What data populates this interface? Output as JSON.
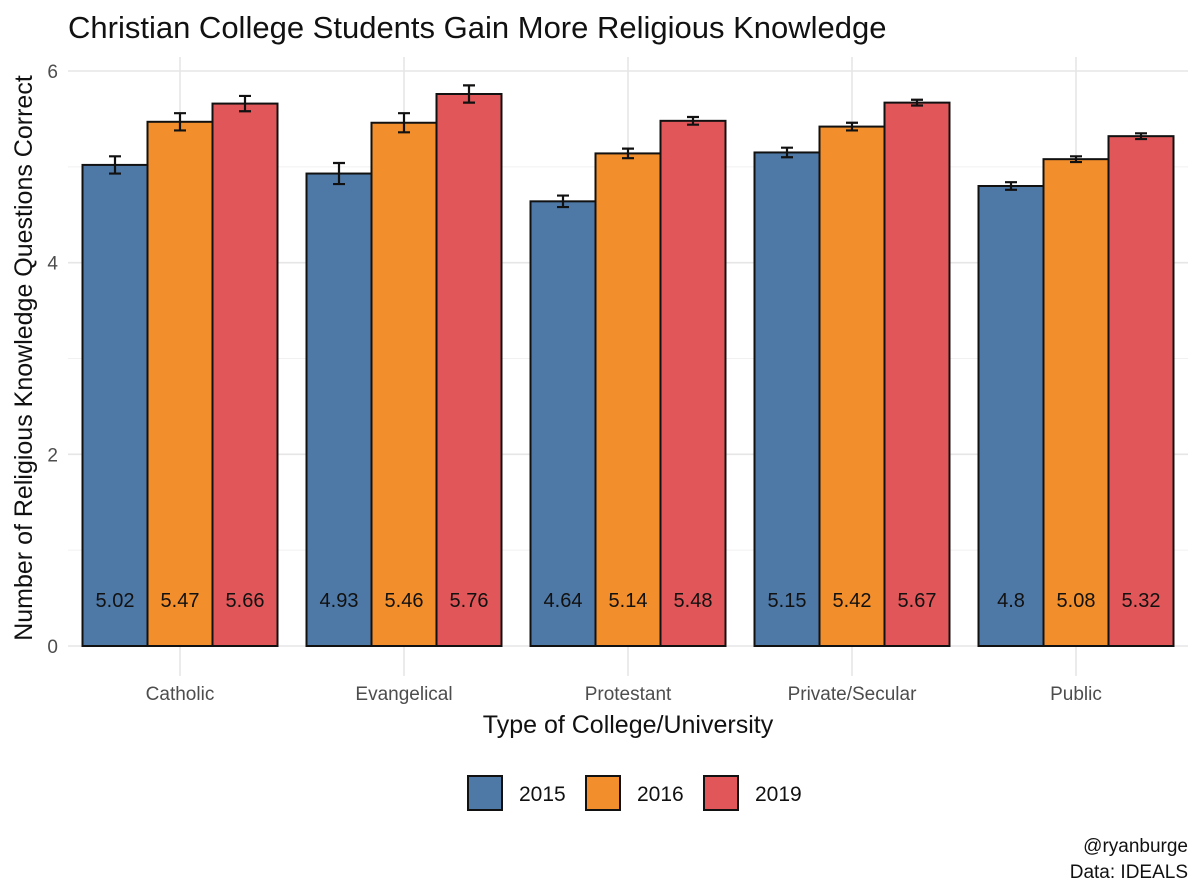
{
  "chart_data": {
    "type": "bar",
    "title": "Christian College Students Gain More Religious Knowledge",
    "xlabel": "Type of College/University",
    "ylabel": "Number of Religious Knowledge Questions Correct",
    "categories": [
      "Catholic",
      "Evangelical",
      "Protestant",
      "Private/Secular",
      "Public"
    ],
    "ylim": [
      0,
      6
    ],
    "yticks": [
      0,
      2,
      4,
      6
    ],
    "grid": true,
    "legend_position": "bottom",
    "series": [
      {
        "name": "2015",
        "color": "#4e79a7",
        "values": [
          5.02,
          4.93,
          4.64,
          5.15,
          4.8
        ],
        "labels": [
          "5.02",
          "4.93",
          "4.64",
          "5.15",
          "4.8"
        ],
        "ci_low": [
          4.93,
          4.82,
          4.58,
          5.1,
          4.76
        ],
        "ci_high": [
          5.11,
          5.04,
          4.7,
          5.2,
          4.84
        ]
      },
      {
        "name": "2016",
        "color": "#f28e2b",
        "values": [
          5.47,
          5.46,
          5.14,
          5.42,
          5.08
        ],
        "labels": [
          "5.47",
          "5.46",
          "5.14",
          "5.42",
          "5.08"
        ],
        "ci_low": [
          5.38,
          5.36,
          5.09,
          5.38,
          5.05
        ],
        "ci_high": [
          5.56,
          5.56,
          5.19,
          5.46,
          5.11
        ]
      },
      {
        "name": "2019",
        "color": "#e15759",
        "values": [
          5.66,
          5.76,
          5.48,
          5.67,
          5.32
        ],
        "labels": [
          "5.66",
          "5.76",
          "5.48",
          "5.67",
          "5.32"
        ],
        "ci_low": [
          5.58,
          5.67,
          5.44,
          5.64,
          5.29
        ],
        "ci_high": [
          5.74,
          5.85,
          5.52,
          5.7,
          5.35
        ]
      }
    ],
    "caption": [
      "@ryanburge",
      "Data: IDEALS"
    ]
  }
}
